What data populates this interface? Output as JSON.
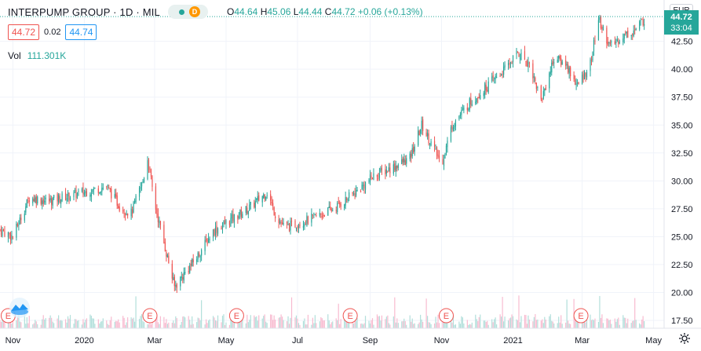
{
  "legend": {
    "title": "INTERPUMP GROUP · 1D · MIL",
    "badge": "D",
    "open_label": "O",
    "open": "44.64",
    "high_label": "H",
    "high": "45.06",
    "low_label": "L",
    "low": "44.44",
    "close_label": "C",
    "close": "44.72",
    "change": "+0.06 (+0.13%)"
  },
  "quote": {
    "bid": "44.72",
    "spread": "0.02",
    "ask": "44.74"
  },
  "volume": {
    "label": "Vol",
    "value": "111.301K"
  },
  "currency": "EUR",
  "last_price": {
    "price": "44.72",
    "countdown": "33:04"
  },
  "colors": {
    "up": "#26a69a",
    "down": "#ef5350",
    "volume_up": "#b2dfdb",
    "volume_down": "#f8bbd0",
    "event": "#ef5350"
  },
  "chart_data": {
    "type": "candlestick",
    "y_ticks": [
      "17.50",
      "20.00",
      "22.50",
      "25.00",
      "27.50",
      "30.00",
      "32.50",
      "35.00",
      "37.50",
      "40.00",
      "42.50"
    ],
    "ylim": [
      17.5,
      45.5
    ],
    "x_ticks": [
      "Nov",
      "2020",
      "Mar",
      "May",
      "Jul",
      "Sep",
      "Nov",
      "2021",
      "Mar",
      "May"
    ],
    "series": [
      {
        "values": [
          [
            "2019-10-21",
            25.6
          ],
          [
            "2019-11-01",
            25.0
          ],
          [
            "2019-11-15",
            28.5
          ],
          [
            "2019-12-01",
            28.2
          ],
          [
            "2020-01-01",
            29.0
          ],
          [
            "2020-01-20",
            29.5
          ],
          [
            "2020-02-01",
            27.6
          ],
          [
            "2020-02-10",
            27.1
          ],
          [
            "2020-02-20",
            30.0
          ],
          [
            "2020-02-24",
            32.0
          ],
          [
            "2020-03-01",
            28.0
          ],
          [
            "2020-03-10",
            24.0
          ],
          [
            "2020-03-18",
            20.5
          ],
          [
            "2020-03-25",
            21.5
          ],
          [
            "2020-04-05",
            23.0
          ],
          [
            "2020-04-20",
            25.5
          ],
          [
            "2020-05-05",
            26.5
          ],
          [
            "2020-05-20",
            27.5
          ],
          [
            "2020-06-05",
            29.0
          ],
          [
            "2020-06-12",
            27.0
          ],
          [
            "2020-06-20",
            25.8
          ],
          [
            "2020-07-10",
            26.5
          ],
          [
            "2020-08-01",
            27.5
          ],
          [
            "2020-08-20",
            29.0
          ],
          [
            "2020-09-05",
            30.5
          ],
          [
            "2020-09-20",
            31.2
          ],
          [
            "2020-10-05",
            32.0
          ],
          [
            "2020-10-15",
            35.0
          ],
          [
            "2020-10-25",
            33.0
          ],
          [
            "2020-11-01",
            31.5
          ],
          [
            "2020-11-10",
            35.0
          ],
          [
            "2020-11-25",
            37.0
          ],
          [
            "2020-12-10",
            38.5
          ],
          [
            "2020-12-25",
            40.0
          ],
          [
            "2021-01-05",
            41.5
          ],
          [
            "2021-01-15",
            40.5
          ],
          [
            "2021-01-25",
            37.2
          ],
          [
            "2021-02-05",
            41.0
          ],
          [
            "2021-02-15",
            40.5
          ],
          [
            "2021-02-25",
            38.5
          ],
          [
            "2021-03-08",
            40.5
          ],
          [
            "2021-03-15",
            44.5
          ],
          [
            "2021-03-25",
            42.0
          ],
          [
            "2021-04-05",
            43.0
          ],
          [
            "2021-04-15",
            43.5
          ],
          [
            "2021-04-25",
            44.7
          ]
        ]
      }
    ],
    "events": [
      {
        "date": "2019-10-28",
        "label": "E"
      },
      {
        "date": "2020-02-26",
        "label": "E"
      },
      {
        "date": "2020-05-10",
        "label": "E"
      },
      {
        "date": "2020-08-15",
        "label": "E"
      },
      {
        "date": "2020-11-05",
        "label": "E"
      },
      {
        "date": "2021-02-28",
        "label": "E"
      }
    ]
  }
}
